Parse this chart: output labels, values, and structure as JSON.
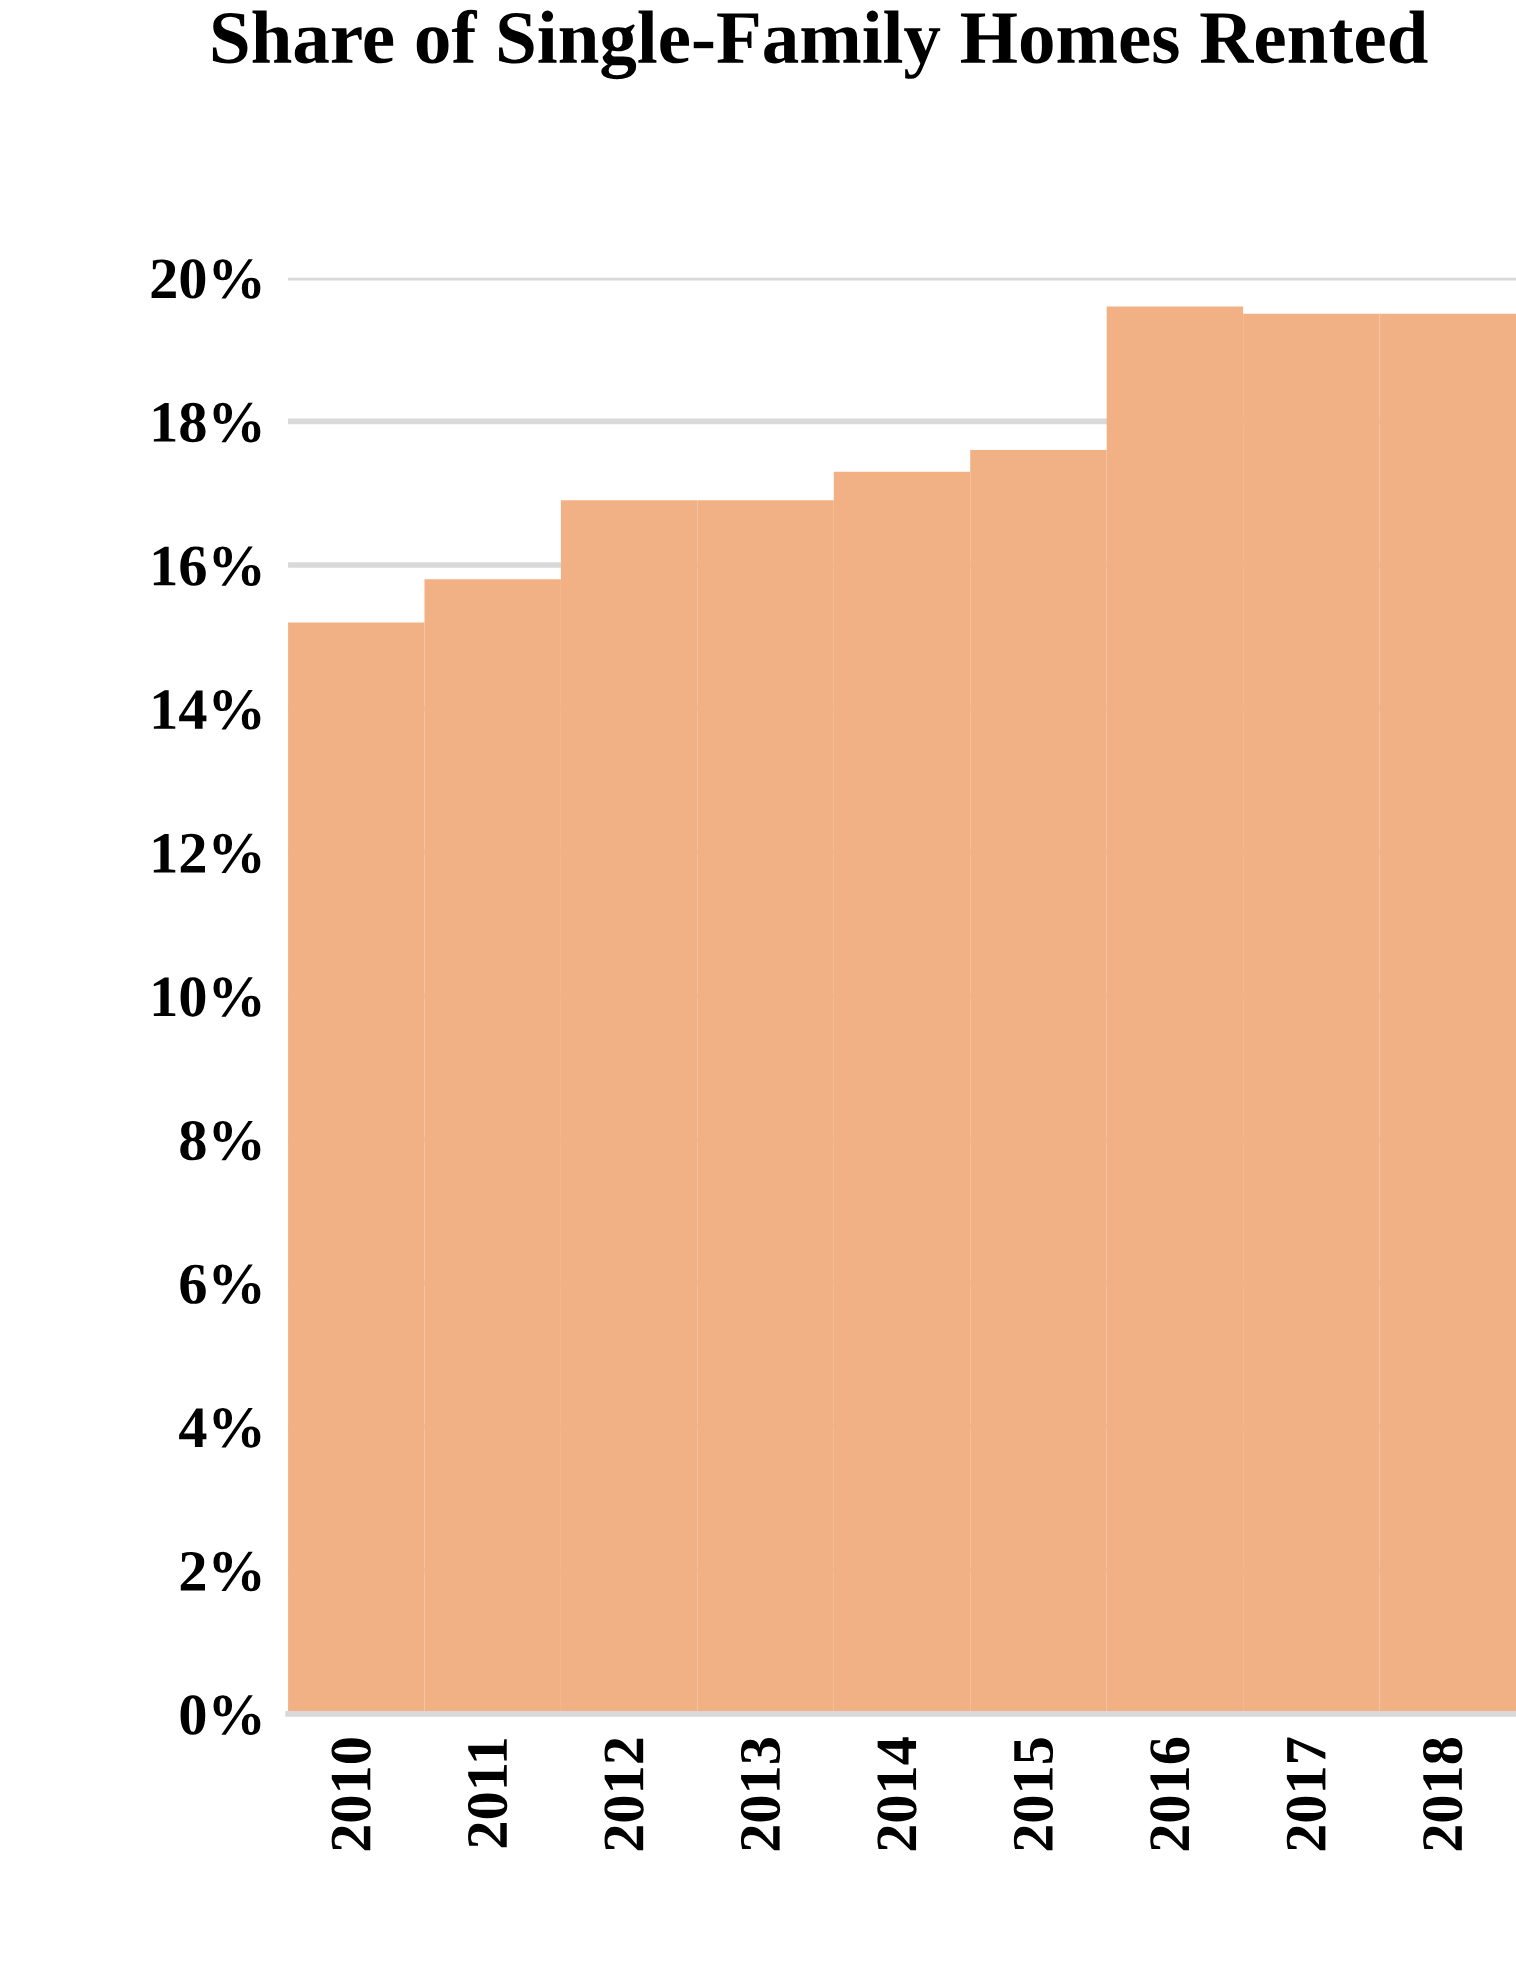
{
  "chart_data": {
    "type": "bar",
    "title": "Share of Single-Family Homes Rented",
    "categories": [
      "2010",
      "2011",
      "2012",
      "2013",
      "2014",
      "2015",
      "2016",
      "2017",
      "2018"
    ],
    "values": [
      15.2,
      15.8,
      16.9,
      16.9,
      17.3,
      17.6,
      19.6,
      19.5,
      19.5
    ],
    "color": "#f2b085",
    "ylim": [
      0,
      20
    ],
    "yticks": [
      {
        "value": 0,
        "label": "0%"
      },
      {
        "value": 2,
        "label": "2%"
      },
      {
        "value": 4,
        "label": "4%"
      },
      {
        "value": 6,
        "label": "6%"
      },
      {
        "value": 8,
        "label": "8%"
      },
      {
        "value": 10,
        "label": "10%"
      },
      {
        "value": 12,
        "label": "12%"
      },
      {
        "value": 14,
        "label": "14%"
      },
      {
        "value": 16,
        "label": "16%"
      },
      {
        "value": 18,
        "label": "18%"
      },
      {
        "value": 20,
        "label": "20%"
      }
    ],
    "grid": "y",
    "legend": false
  }
}
